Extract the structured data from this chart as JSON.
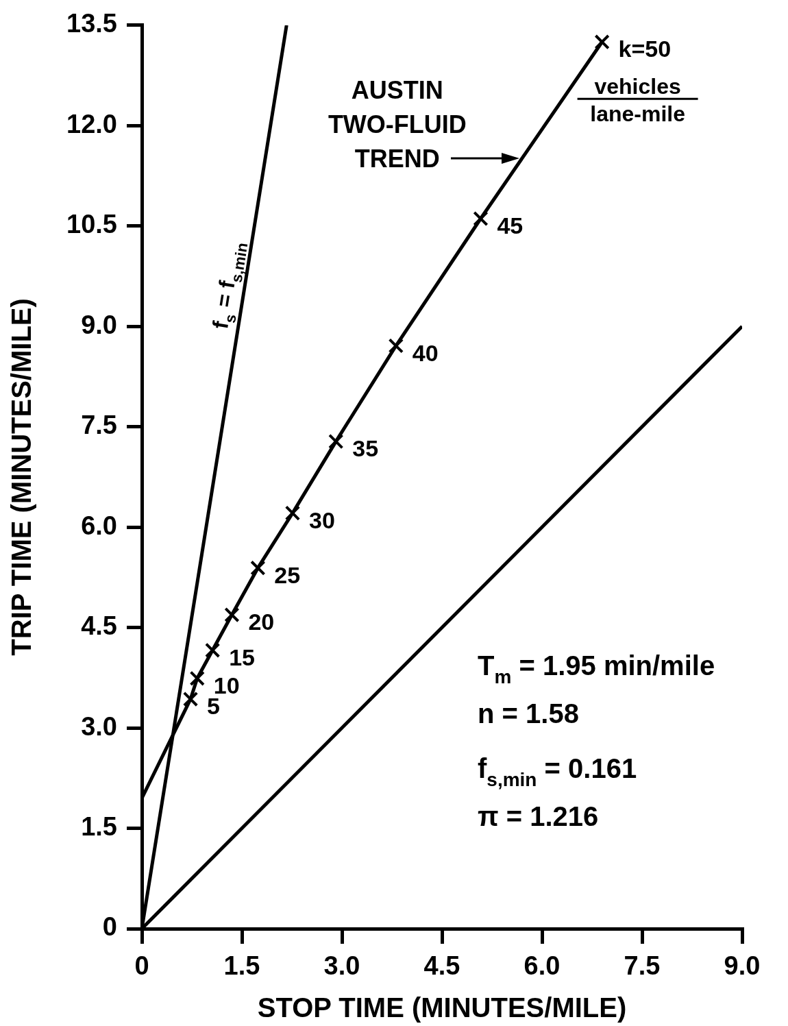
{
  "chart_data": {
    "type": "line",
    "xlabel": "STOP TIME (MINUTES/MILE)",
    "ylabel": "TRIP TIME (MINUTES/MILE)",
    "xlim": [
      0,
      9.0
    ],
    "ylim": [
      0,
      13.5
    ],
    "xticks": [
      0,
      {
        "value": 1.5,
        "label": "1.5"
      },
      {
        "value": 3,
        "label": "3.0"
      },
      {
        "value": 4.5,
        "label": "4.5"
      },
      {
        "value": 6,
        "label": "6.0"
      },
      {
        "value": 7.5,
        "label": "7.5"
      },
      {
        "value": 9,
        "label": "9.0"
      }
    ],
    "yticks": [
      0,
      {
        "value": 1.5,
        "label": "1.5"
      },
      {
        "value": 3,
        "label": "3.0"
      },
      {
        "value": 4.5,
        "label": "4.5"
      },
      {
        "value": 6,
        "label": "6.0"
      },
      {
        "value": 7.5,
        "label": "7.5"
      },
      {
        "value": 9,
        "label": "9.0"
      },
      {
        "value": 10.5,
        "label": "10.5"
      },
      {
        "value": 12,
        "label": "12.0"
      },
      {
        "value": 13.5,
        "label": "13.5"
      }
    ],
    "grid": false,
    "legend": false,
    "series": [
      {
        "color": "#000000",
        "marker": "none",
        "x": [
          0,
          2.17
        ],
        "values": [
          0,
          13.5
        ]
      },
      {
        "color": "#000000",
        "marker": "none",
        "x": [
          0,
          9.0
        ],
        "values": [
          0,
          9.0
        ]
      },
      {
        "color": "#000000",
        "marker": "none",
        "x": [
          0,
          0.73,
          0.83,
          1.06,
          1.35,
          1.74,
          2.26,
          2.91,
          3.81,
          5.08,
          6.9
        ],
        "values": [
          1.95,
          3.43,
          3.74,
          4.16,
          4.69,
          5.39,
          6.21,
          7.28,
          8.71,
          10.61,
          13.25
        ]
      },
      {
        "type": "scatter",
        "color": "#000000",
        "marker": "cross",
        "x": [
          0.73,
          0.83,
          1.06,
          1.35,
          1.74,
          2.26,
          2.91,
          3.81,
          5.08,
          6.9
        ],
        "values": [
          3.43,
          3.74,
          4.16,
          4.69,
          5.39,
          6.21,
          7.28,
          8.71,
          10.61,
          13.25
        ]
      }
    ],
    "annotations": [
      {
        "text": "AUSTIN\nTWO-FLUID\nTREND",
        "x": 5.68,
        "y": 11.51
      },
      {
        "text": "f$_{s}$ = f$_{s,min}$",
        "x": 1.55,
        "y": 9.6
      },
      {
        "text": "vehicles\nlane-mile",
        "x": 6.9,
        "y": 13.25
      },
      {
        "text": "5",
        "x": 0.73,
        "y": 3.43
      },
      {
        "text": "10",
        "x": 0.83,
        "y": 3.74
      },
      {
        "text": "15",
        "x": 1.06,
        "y": 4.16
      },
      {
        "text": "20",
        "x": 1.35,
        "y": 4.69
      },
      {
        "text": "25",
        "x": 1.74,
        "y": 5.39
      },
      {
        "text": "30",
        "x": 2.26,
        "y": 6.21
      },
      {
        "text": "35",
        "x": 2.91,
        "y": 7.28
      },
      {
        "text": "40",
        "x": 3.81,
        "y": 8.71
      },
      {
        "text": "45",
        "x": 5.08,
        "y": 10.61
      },
      {
        "text": "k=50",
        "x": 6.9,
        "y": 13.25
      },
      "T$_{m}$ = 1.95 min/mile",
      "n = 1.58",
      "f$_{s,min}$ = 0.161",
      "π = 1.216"
    ]
  }
}
